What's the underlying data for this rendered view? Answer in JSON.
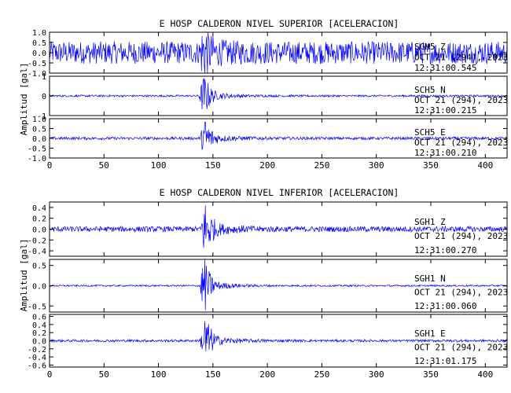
{
  "trace_color": "#0000ff",
  "chart_data": [
    {
      "type": "line",
      "title": "E HOSP CALDERON NIVEL SUPERIOR [ACELERACION]",
      "ylabel": "Amplitud [gal]",
      "xlim": [
        0,
        420
      ],
      "xticks": [
        0,
        50,
        100,
        150,
        200,
        250,
        300,
        350,
        400
      ],
      "traces": [
        {
          "station": "SCH5",
          "component": "Z",
          "date": "OCT 21 (294), 2023",
          "time": "12:31:00.545",
          "ylim": [
            -1.0,
            1.0
          ],
          "yticks": [
            "1.0",
            "0.5",
            "0.0",
            "-0.5",
            "-1.0"
          ],
          "tick_values": [
            1.0,
            0.5,
            0.0,
            -0.5,
            -1.0
          ],
          "noise_amplitude": 0.55,
          "peak_amplitude": 1.0,
          "peak_time": 143
        },
        {
          "station": "SCH5",
          "component": "N",
          "date": "OCT 21 (294), 2023",
          "time": "12:31:00.215",
          "ylim": [
            -1.0,
            1.0
          ],
          "yticks": [
            "1",
            "0",
            "-1"
          ],
          "tick_values": [
            1,
            0,
            -1
          ],
          "noise_amplitude": 0.05,
          "peak_amplitude": 1.0,
          "peak_time": 143
        },
        {
          "station": "SCH5",
          "component": "E",
          "date": "OCT 21 (294), 2023",
          "time": "12:31:00.210",
          "ylim": [
            -1.0,
            1.0
          ],
          "yticks": [
            "1.0",
            "0.5",
            "0.0",
            "-0.5",
            "-1.0"
          ],
          "tick_values": [
            1.0,
            0.5,
            0.0,
            -0.5,
            -1.0
          ],
          "noise_amplitude": 0.07,
          "peak_amplitude": 1.0,
          "peak_time": 144
        }
      ]
    },
    {
      "type": "line",
      "title": "E HOSP CALDERON NIVEL INFERIOR [ACELERACION]",
      "ylabel": "Amplitud [gal]",
      "xlim": [
        0,
        420
      ],
      "xticks": [
        0,
        50,
        100,
        150,
        200,
        250,
        300,
        350,
        400
      ],
      "traces": [
        {
          "station": "SGH1",
          "component": "Z",
          "date": "OCT 21 (294), 2023",
          "time": "12:31:00.270",
          "ylim": [
            -0.5,
            0.5
          ],
          "yticks": [
            "0.4",
            "0.2",
            "0.0",
            "-0.2",
            "-0.4"
          ],
          "tick_values": [
            0.4,
            0.2,
            0.0,
            -0.2,
            -0.4
          ],
          "noise_amplitude": 0.05,
          "peak_amplitude": 0.5,
          "peak_time": 144
        },
        {
          "station": "SGH1",
          "component": "N",
          "date": "OCT 21 (294), 2023",
          "time": "12:31:00.060",
          "ylim": [
            -0.65,
            0.65
          ],
          "yticks": [
            "0.5",
            "0.0",
            "-0.5"
          ],
          "tick_values": [
            0.5,
            0.0,
            -0.5
          ],
          "noise_amplitude": 0.02,
          "peak_amplitude": 0.65,
          "peak_time": 143
        },
        {
          "station": "SGH1",
          "component": "E",
          "date": "OCT 21 (294), 2023",
          "time": "12:31:01.175",
          "ylim": [
            -0.65,
            0.65
          ],
          "yticks": [
            "0.6",
            "0.4",
            "0.2",
            "0.0",
            "-0.2",
            "-0.4",
            "-0.6"
          ],
          "tick_values": [
            0.6,
            0.4,
            0.2,
            0.0,
            -0.2,
            -0.4,
            -0.6
          ],
          "noise_amplitude": 0.03,
          "peak_amplitude": 0.6,
          "peak_time": 144
        }
      ]
    }
  ]
}
